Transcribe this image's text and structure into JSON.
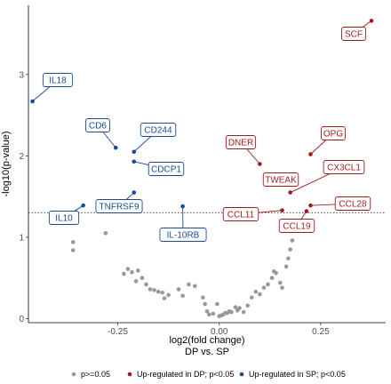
{
  "chart_data": {
    "type": "scatter",
    "xlabel": "log2(fold change)",
    "xlabel2": "DP vs. SP",
    "ylabel": "-log10(p-value)",
    "xlim": [
      -0.47,
      0.41
    ],
    "ylim": [
      -0.05,
      3.85
    ],
    "xticks": [
      -0.25,
      0.0,
      0.25
    ],
    "xtick_labels": [
      "-0.25",
      "0.00",
      "0.25"
    ],
    "yticks": [
      0,
      1,
      2,
      3
    ],
    "ytick_labels": [
      "0",
      "1",
      "2",
      "3"
    ],
    "threshold_y": 1.301,
    "colors": {
      "ns": "#999999",
      "up_dp": "#9e1b1f",
      "up_sp": "#1a4a94"
    },
    "legend": {
      "position": "bottom",
      "items": [
        {
          "key": "ns",
          "label": "p>=0.05"
        },
        {
          "key": "up_dp",
          "label": "Up-regulated in DP; p<0.05"
        },
        {
          "key": "up_sp",
          "label": "Up-regulated in SP; p<0.05"
        }
      ]
    },
    "labeled_points": [
      {
        "name": "SCF",
        "x": 0.375,
        "y": 3.66,
        "group": "up_dp"
      },
      {
        "name": "OPG",
        "x": 0.225,
        "y": 2.02,
        "group": "up_dp"
      },
      {
        "name": "DNER",
        "x": 0.1,
        "y": 1.9,
        "group": "up_dp"
      },
      {
        "name": "CX3CL1",
        "x": 0.175,
        "y": 1.55,
        "group": "up_dp"
      },
      {
        "name": "TWEAK",
        "x": 0.125,
        "y": 1.76,
        "group": "up_dp"
      },
      {
        "name": "CCL28",
        "x": 0.225,
        "y": 1.39,
        "group": "up_dp"
      },
      {
        "name": "CCL11",
        "x": 0.155,
        "y": 1.33,
        "group": "up_dp"
      },
      {
        "name": "CCL19",
        "x": 0.215,
        "y": 1.32,
        "group": "up_dp"
      },
      {
        "name": "IL18",
        "x": -0.46,
        "y": 2.67,
        "group": "up_sp"
      },
      {
        "name": "CD6",
        "x": -0.255,
        "y": 2.1,
        "group": "up_sp"
      },
      {
        "name": "CD244",
        "x": -0.21,
        "y": 2.05,
        "group": "up_sp"
      },
      {
        "name": "CDCP1",
        "x": -0.21,
        "y": 1.93,
        "group": "up_sp"
      },
      {
        "name": "TNFRSF9",
        "x": -0.21,
        "y": 1.55,
        "group": "up_sp"
      },
      {
        "name": "IL10",
        "x": -0.335,
        "y": 1.39,
        "group": "up_sp"
      },
      {
        "name": "IL-10RB",
        "x": -0.09,
        "y": 1.38,
        "group": "up_sp"
      }
    ],
    "ns_points": [
      [
        -0.36,
        0.94
      ],
      [
        -0.36,
        0.84
      ],
      [
        -0.28,
        1.05
      ],
      [
        -0.235,
        0.55
      ],
      [
        -0.225,
        0.61
      ],
      [
        -0.215,
        0.57
      ],
      [
        -0.205,
        0.46
      ],
      [
        -0.2,
        0.59
      ],
      [
        -0.19,
        0.5
      ],
      [
        -0.18,
        0.42
      ],
      [
        -0.17,
        0.36
      ],
      [
        -0.16,
        0.35
      ],
      [
        -0.15,
        0.33
      ],
      [
        -0.14,
        0.32
      ],
      [
        -0.135,
        0.25
      ],
      [
        -0.125,
        0.29
      ],
      [
        -0.1,
        0.36
      ],
      [
        -0.09,
        0.28
      ],
      [
        -0.075,
        0.42
      ],
      [
        -0.06,
        0.4
      ],
      [
        -0.04,
        0.26
      ],
      [
        -0.035,
        0.18
      ],
      [
        -0.03,
        0.09
      ],
      [
        -0.025,
        0.05
      ],
      [
        -0.015,
        0.06
      ],
      [
        -0.005,
        0.18
      ],
      [
        0.0,
        0.03
      ],
      [
        0.005,
        0.04
      ],
      [
        0.01,
        0.05
      ],
      [
        0.015,
        0.07
      ],
      [
        0.02,
        0.07
      ],
      [
        0.025,
        0.09
      ],
      [
        0.03,
        0.08
      ],
      [
        0.04,
        0.14
      ],
      [
        0.045,
        0.1
      ],
      [
        0.05,
        0.13
      ],
      [
        0.07,
        0.16
      ],
      [
        0.08,
        0.26
      ],
      [
        0.09,
        0.33
      ],
      [
        0.1,
        0.3
      ],
      [
        0.11,
        0.38
      ],
      [
        0.12,
        0.42
      ],
      [
        0.13,
        0.5
      ],
      [
        0.135,
        0.58
      ],
      [
        0.14,
        0.56
      ],
      [
        0.15,
        0.44
      ],
      [
        0.165,
        0.64
      ],
      [
        0.17,
        0.74
      ],
      [
        0.175,
        0.85
      ],
      [
        0.18,
        0.96
      ],
      [
        0.2,
        1.1
      ],
      [
        0.155,
        0.38
      ],
      [
        0.06,
        0.08
      ]
    ]
  }
}
